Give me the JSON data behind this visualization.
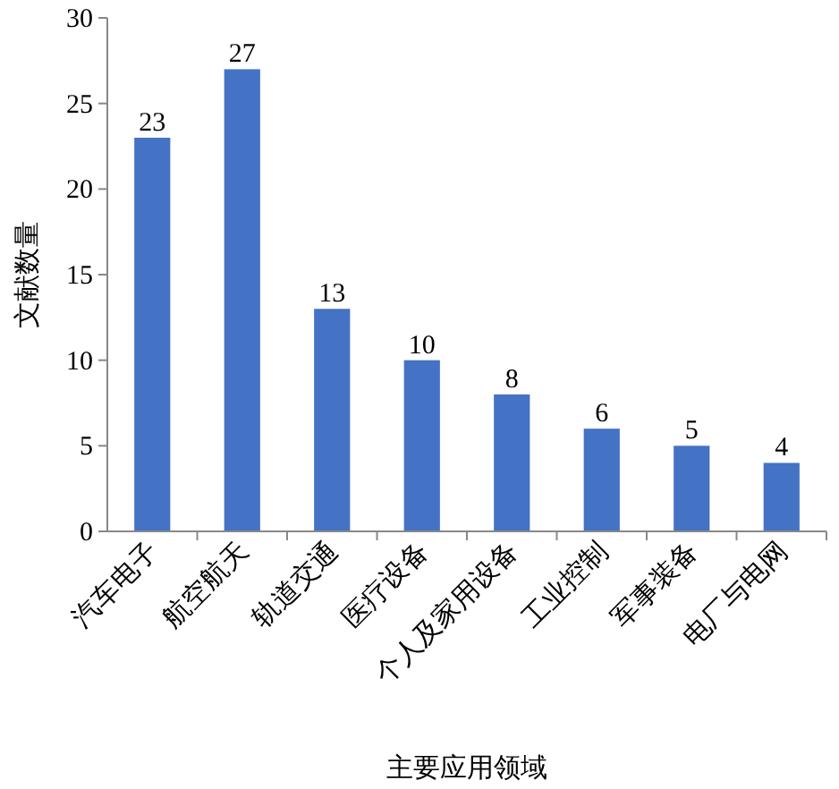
{
  "chart_data": {
    "type": "bar",
    "xlabel": "主要应用领域",
    "ylabel": "文献数量",
    "categories": [
      "汽车电子",
      "航空航天",
      "轨道交通",
      "医疗设备",
      "个人及家用设备",
      "工业控制",
      "军事装备",
      "电厂与电网"
    ],
    "values": [
      23,
      27,
      13,
      10,
      8,
      6,
      5,
      4
    ],
    "color": "#4472c4",
    "ylim": [
      0,
      30
    ],
    "yticks": [
      0,
      5,
      10,
      15,
      20,
      25,
      30
    ],
    "data_labels": true
  }
}
